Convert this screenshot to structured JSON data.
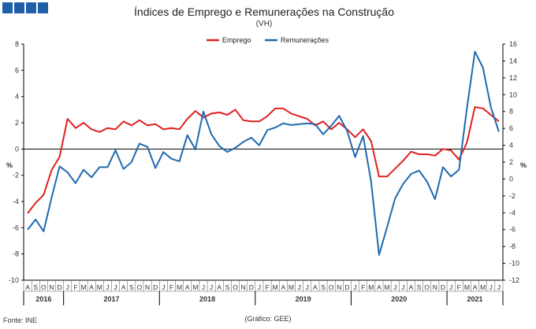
{
  "header": {
    "logo_blocks": 4
  },
  "chart_data": {
    "type": "line",
    "title": "Índices de Emprego e Remunerações na Construção",
    "subtitle": "(VH)",
    "left_axis": {
      "label": "%",
      "ylim": [
        -10,
        8
      ],
      "ticks": [
        8,
        6,
        4,
        2,
        0,
        -2,
        -4,
        -6,
        -8,
        -10
      ]
    },
    "right_axis": {
      "label": "%",
      "ylim": [
        -12,
        16
      ],
      "ticks": [
        16,
        14,
        12,
        10,
        8,
        6,
        4,
        2,
        0,
        -2,
        -4,
        -6,
        -8,
        -10,
        -12
      ]
    },
    "legend_position": "top-center",
    "months": [
      "A",
      "S",
      "O",
      "N",
      "D",
      "J",
      "F",
      "M",
      "A",
      "M",
      "J",
      "J",
      "A",
      "S",
      "O",
      "N",
      "D",
      "J",
      "F",
      "M",
      "A",
      "M",
      "J",
      "J",
      "A",
      "S",
      "O",
      "N",
      "D",
      "J",
      "F",
      "M",
      "A",
      "M",
      "J",
      "J",
      "A",
      "S",
      "O",
      "N",
      "D",
      "J",
      "F",
      "M",
      "A",
      "M",
      "J",
      "J",
      "A",
      "S",
      "O",
      "N",
      "D",
      "J",
      "F",
      "M",
      "A",
      "M",
      "J",
      "J"
    ],
    "years": [
      {
        "label": "2016",
        "start": 0,
        "end": 4
      },
      {
        "label": "2017",
        "start": 5,
        "end": 16
      },
      {
        "label": "2018",
        "start": 17,
        "end": 28
      },
      {
        "label": "2019",
        "start": 29,
        "end": 40
      },
      {
        "label": "2020",
        "start": 41,
        "end": 52
      },
      {
        "label": "2021",
        "start": 53,
        "end": 59
      }
    ],
    "series": [
      {
        "name": "Emprego",
        "axis": "left",
        "color": "#e0201f",
        "values": [
          -4.9,
          -4.1,
          -3.5,
          -1.6,
          -0.6,
          2.3,
          1.6,
          2.0,
          1.5,
          1.3,
          1.6,
          1.5,
          2.1,
          1.8,
          2.2,
          1.8,
          1.9,
          1.5,
          1.6,
          1.5,
          2.3,
          2.9,
          2.4,
          2.7,
          2.8,
          2.6,
          3.0,
          2.2,
          2.1,
          2.1,
          2.5,
          3.1,
          3.1,
          2.7,
          2.5,
          2.3,
          1.8,
          2.1,
          1.5,
          2.0,
          1.5,
          0.9,
          1.5,
          0.6,
          -2.1,
          -2.1,
          -1.5,
          -0.9,
          -0.2,
          -0.4,
          -0.4,
          -0.5,
          0.0,
          -0.1,
          -0.8,
          0.5,
          3.2,
          3.1,
          2.6,
          2.1
        ]
      },
      {
        "name": "Remunerações",
        "axis": "right",
        "color": "#1f6ab0",
        "values": [
          -6.0,
          -4.8,
          -6.2,
          -2.2,
          1.5,
          0.8,
          -0.5,
          1.1,
          0.2,
          1.4,
          1.4,
          3.4,
          1.2,
          2.0,
          4.2,
          3.8,
          1.3,
          3.2,
          2.4,
          2.1,
          5.2,
          3.5,
          8.0,
          5.3,
          3.9,
          3.2,
          3.7,
          4.4,
          4.9,
          4.0,
          5.8,
          6.1,
          6.6,
          6.4,
          6.5,
          6.6,
          6.5,
          5.3,
          6.3,
          7.5,
          5.7,
          2.6,
          5.1,
          -0.3,
          -9.0,
          -5.7,
          -2.3,
          -0.6,
          0.6,
          1.0,
          -0.3,
          -2.4,
          1.4,
          0.3,
          1.1,
          8.4,
          15.1,
          13.2,
          8.5,
          5.6
        ]
      }
    ]
  },
  "footer": {
    "source": "Fonte: INE",
    "credit": "(Gráfico: GEE)"
  }
}
